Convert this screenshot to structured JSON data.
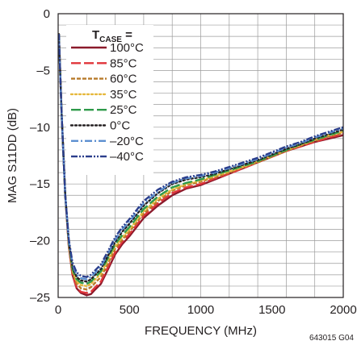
{
  "chart_data": {
    "type": "line",
    "xlabel": "FREQUENCY (MHz)",
    "ylabel": "MAG S11DD (dB)",
    "xlim": [
      0,
      2000
    ],
    "ylim": [
      -25,
      0
    ],
    "xticks": [
      0,
      500,
      1000,
      1500,
      2000
    ],
    "xtick_labels": [
      "0",
      "500",
      "1000",
      "1500",
      "2000"
    ],
    "yticks": [
      0,
      -5,
      -10,
      -15,
      -20,
      -25
    ],
    "ytick_labels": [
      "0",
      "–5",
      "–10",
      "–15",
      "–20",
      "–25"
    ],
    "grid": true,
    "legend_position": "top-left",
    "legend_title_main": "T",
    "legend_title_sub": "CASE",
    "legend_title_suffix": " =",
    "figure_id": "643015 G04",
    "series": [
      {
        "name": "100°C",
        "color": "#8b1a2b",
        "dash": "solid",
        "x": [
          5,
          25,
          50,
          75,
          100,
          130,
          160,
          200,
          230,
          260,
          300,
          350,
          400,
          450,
          500,
          550,
          600,
          700,
          800,
          900,
          1000,
          1100,
          1200,
          1300,
          1400,
          1500,
          1600,
          1700,
          1800,
          1900,
          2000
        ],
        "y": [
          -1.8,
          -9,
          -16,
          -20.5,
          -23,
          -24.2,
          -24.6,
          -24.8,
          -24.7,
          -24.3,
          -23.8,
          -22.5,
          -21.2,
          -20.3,
          -19.6,
          -18.8,
          -18,
          -16.9,
          -16,
          -15.4,
          -15.1,
          -14.6,
          -14.1,
          -13.6,
          -13.1,
          -12.6,
          -12.1,
          -11.7,
          -11.3,
          -11,
          -10.7
        ]
      },
      {
        "name": "85°C",
        "color": "#e0343a",
        "dash": "long-dash",
        "x": [
          5,
          25,
          50,
          75,
          100,
          130,
          160,
          200,
          230,
          260,
          300,
          350,
          400,
          450,
          500,
          550,
          600,
          700,
          800,
          900,
          1000,
          1100,
          1200,
          1300,
          1400,
          1500,
          1600,
          1700,
          1800,
          1900,
          2000
        ],
        "y": [
          -1.8,
          -9,
          -16,
          -20.5,
          -23,
          -24.1,
          -24.5,
          -24.6,
          -24.5,
          -24.1,
          -23.6,
          -22.3,
          -21,
          -20.1,
          -19.4,
          -18.6,
          -17.8,
          -16.7,
          -15.8,
          -15.3,
          -15,
          -14.5,
          -14.1,
          -13.6,
          -13.1,
          -12.6,
          -12.1,
          -11.7,
          -11.3,
          -10.9,
          -10.6
        ]
      },
      {
        "name": "60°C",
        "color": "#b77a2a",
        "dash": "short-dash",
        "x": [
          5,
          25,
          50,
          75,
          100,
          130,
          160,
          200,
          230,
          260,
          300,
          350,
          400,
          450,
          500,
          550,
          600,
          700,
          800,
          900,
          1000,
          1100,
          1200,
          1300,
          1400,
          1500,
          1600,
          1700,
          1800,
          1900,
          2000
        ],
        "y": [
          -1.8,
          -9,
          -16,
          -20.4,
          -22.8,
          -23.8,
          -24.2,
          -24.3,
          -24.1,
          -23.7,
          -23.2,
          -22,
          -20.7,
          -19.9,
          -19.2,
          -18.4,
          -17.6,
          -16.5,
          -15.6,
          -15.1,
          -14.8,
          -14.4,
          -14,
          -13.5,
          -13.1,
          -12.6,
          -12.1,
          -11.6,
          -11.2,
          -10.8,
          -10.5
        ]
      },
      {
        "name": "35°C",
        "color": "#e6b83c",
        "dash": "dotted",
        "x": [
          5,
          25,
          50,
          75,
          100,
          130,
          160,
          200,
          230,
          260,
          300,
          350,
          400,
          450,
          500,
          550,
          600,
          700,
          800,
          900,
          1000,
          1100,
          1200,
          1300,
          1400,
          1500,
          1600,
          1700,
          1800,
          1900,
          2000
        ],
        "y": [
          -1.8,
          -9,
          -16,
          -20.3,
          -22.6,
          -23.6,
          -23.9,
          -24,
          -23.8,
          -23.4,
          -22.9,
          -21.7,
          -20.5,
          -19.7,
          -19,
          -18.2,
          -17.4,
          -16.3,
          -15.5,
          -15,
          -14.7,
          -14.3,
          -13.9,
          -13.5,
          -13,
          -12.5,
          -12,
          -11.6,
          -11.1,
          -10.7,
          -10.4
        ]
      },
      {
        "name": "25°C",
        "color": "#2e9a4a",
        "dash": "long-dash",
        "x": [
          5,
          25,
          50,
          75,
          100,
          130,
          160,
          200,
          230,
          260,
          300,
          350,
          400,
          450,
          500,
          550,
          600,
          700,
          800,
          900,
          1000,
          1100,
          1200,
          1300,
          1400,
          1500,
          1600,
          1700,
          1800,
          1900,
          2000
        ],
        "y": [
          -1.8,
          -9,
          -16,
          -20.2,
          -22.5,
          -23.4,
          -23.7,
          -23.8,
          -23.6,
          -23.2,
          -22.7,
          -21.5,
          -20.3,
          -19.5,
          -18.8,
          -18,
          -17.2,
          -16.1,
          -15.3,
          -14.9,
          -14.6,
          -14.2,
          -13.8,
          -13.4,
          -13,
          -12.5,
          -12,
          -11.5,
          -11.1,
          -10.7,
          -10.3
        ]
      },
      {
        "name": "0°C",
        "color": "#231f20",
        "dash": "dotted",
        "x": [
          5,
          25,
          50,
          75,
          100,
          130,
          160,
          200,
          230,
          260,
          300,
          350,
          400,
          450,
          500,
          550,
          600,
          700,
          800,
          900,
          1000,
          1100,
          1200,
          1300,
          1400,
          1500,
          1600,
          1700,
          1800,
          1900,
          2000
        ],
        "y": [
          -1.8,
          -9,
          -16,
          -20.1,
          -22.3,
          -23.2,
          -23.5,
          -23.6,
          -23.4,
          -23,
          -22.5,
          -21.3,
          -20.1,
          -19.2,
          -18.5,
          -17.7,
          -16.9,
          -15.8,
          -15,
          -14.6,
          -14.4,
          -14.1,
          -13.7,
          -13.3,
          -12.9,
          -12.4,
          -11.9,
          -11.5,
          -11,
          -10.6,
          -10.2
        ]
      },
      {
        "name": "–20°C",
        "color": "#5b8fd0",
        "dash": "dash-dot",
        "x": [
          5,
          25,
          50,
          75,
          100,
          130,
          160,
          200,
          230,
          260,
          300,
          350,
          400,
          450,
          500,
          550,
          600,
          700,
          800,
          900,
          1000,
          1100,
          1200,
          1300,
          1400,
          1500,
          1600,
          1700,
          1800,
          1900,
          2000
        ],
        "y": [
          -1.8,
          -9,
          -16,
          -20,
          -22.1,
          -23,
          -23.3,
          -23.4,
          -23.2,
          -22.8,
          -22.3,
          -21.1,
          -19.9,
          -19,
          -18.3,
          -17.5,
          -16.7,
          -15.7,
          -14.9,
          -14.5,
          -14.3,
          -14,
          -13.6,
          -13.2,
          -12.8,
          -12.3,
          -11.8,
          -11.4,
          -10.9,
          -10.5,
          -10.1
        ]
      },
      {
        "name": "–40°C",
        "color": "#2b3e8c",
        "dash": "dash-dot-dot",
        "x": [
          5,
          25,
          50,
          75,
          100,
          130,
          160,
          200,
          230,
          260,
          300,
          350,
          400,
          450,
          500,
          550,
          600,
          700,
          800,
          900,
          1000,
          1100,
          1200,
          1300,
          1400,
          1500,
          1600,
          1700,
          1800,
          1900,
          2000
        ],
        "y": [
          -1.8,
          -9,
          -16,
          -19.9,
          -21.9,
          -22.8,
          -23.1,
          -23.2,
          -23,
          -22.6,
          -22.1,
          -20.9,
          -19.7,
          -18.8,
          -18.1,
          -17.3,
          -16.5,
          -15.5,
          -14.8,
          -14.4,
          -14.2,
          -13.9,
          -13.5,
          -13.1,
          -12.7,
          -12.2,
          -11.7,
          -11.3,
          -10.8,
          -10.4,
          -10
        ]
      }
    ]
  }
}
